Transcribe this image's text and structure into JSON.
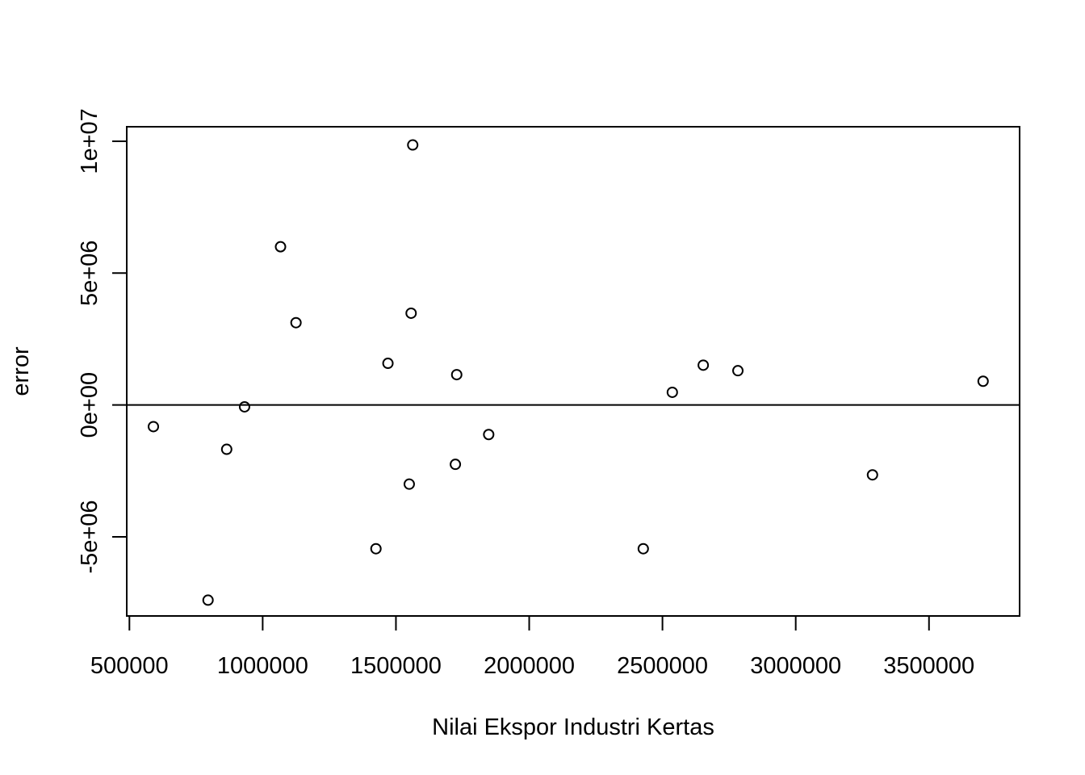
{
  "chart_data": {
    "type": "scatter",
    "title": "",
    "xlabel": "Nilai Ekspor Industri Kertas",
    "ylabel": "error",
    "xlim": [
      490000,
      3840000
    ],
    "ylim": [
      -8000000,
      10550000
    ],
    "x_ticks": [
      500000,
      1000000,
      1500000,
      2000000,
      2500000,
      3000000,
      3500000
    ],
    "x_tick_labels": [
      "500000",
      "1000000",
      "1500000",
      "2000000",
      "2500000",
      "3000000",
      "3500000"
    ],
    "y_ticks": [
      -5000000,
      0,
      5000000,
      10000000
    ],
    "y_tick_labels": [
      "-5e+06",
      "0e+00",
      "5e+06",
      "1e+07"
    ],
    "reference_line_y": 0,
    "grid": false,
    "legend": "none",
    "marker": "open-circle",
    "points": [
      {
        "x": 590000,
        "y": -820000
      },
      {
        "x": 795000,
        "y": -7400000
      },
      {
        "x": 865000,
        "y": -1680000
      },
      {
        "x": 932000,
        "y": -70000
      },
      {
        "x": 1067000,
        "y": 6000000
      },
      {
        "x": 1125000,
        "y": 3120000
      },
      {
        "x": 1425000,
        "y": -5450000
      },
      {
        "x": 1470000,
        "y": 1580000
      },
      {
        "x": 1550000,
        "y": -3000000
      },
      {
        "x": 1557000,
        "y": 3480000
      },
      {
        "x": 1563000,
        "y": 9860000
      },
      {
        "x": 1723000,
        "y": -2250000
      },
      {
        "x": 1728000,
        "y": 1150000
      },
      {
        "x": 1848000,
        "y": -1120000
      },
      {
        "x": 2428000,
        "y": -5450000
      },
      {
        "x": 2537000,
        "y": 480000
      },
      {
        "x": 2653000,
        "y": 1510000
      },
      {
        "x": 2783000,
        "y": 1300000
      },
      {
        "x": 3288000,
        "y": -2650000
      },
      {
        "x": 3703000,
        "y": 900000
      }
    ]
  }
}
